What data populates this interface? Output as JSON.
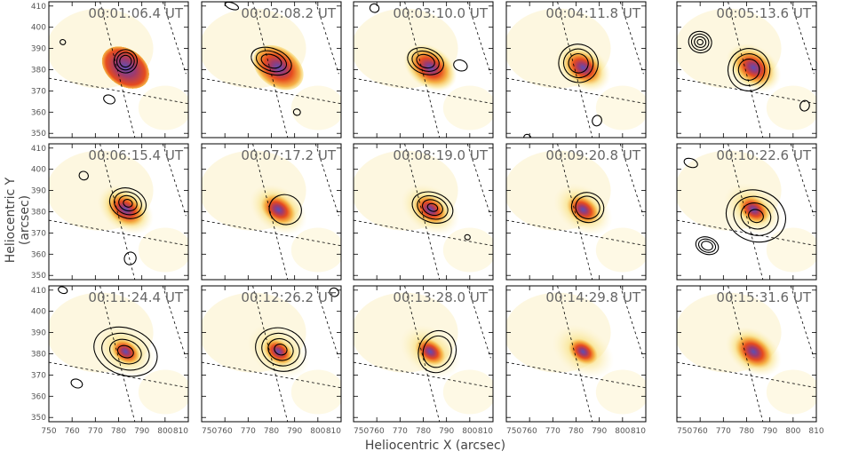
{
  "figure": {
    "xlabel": "Heliocentric X (arcsec)",
    "ylabel": "Heliocentric Y (arcsec)"
  },
  "chart_data": {
    "type": "heatmap",
    "grid": {
      "rows": 3,
      "cols": 5
    },
    "xlim": [
      750,
      810
    ],
    "ylim": [
      348,
      412
    ],
    "x_ticks": [
      750,
      760,
      770,
      780,
      790,
      800,
      810
    ],
    "y_ticks": [
      350,
      360,
      370,
      380,
      390,
      400,
      410
    ],
    "colors": {
      "frame": "#000000",
      "contour": "#000000",
      "tick_label": "#555555",
      "time_label": "#666666"
    },
    "panels": [
      {
        "time": "00:01:06.4 UT",
        "intensity": 0.25,
        "contours": [
          {
            "cx": 783,
            "cy": 384,
            "rx": 5,
            "ry": 5.5,
            "levels": 3
          },
          {
            "cx": 756,
            "cy": 393,
            "rx": 1.2,
            "ry": 1.2,
            "levels": 1
          },
          {
            "cx": 776,
            "cy": 366,
            "rx": 2.5,
            "ry": 2,
            "levels": 1
          }
        ]
      },
      {
        "time": "00:02:08.2 UT",
        "intensity": 0.55,
        "contours": [
          {
            "cx": 780,
            "cy": 384,
            "rx": 9,
            "ry": 6,
            "levels": 3
          },
          {
            "cx": 763,
            "cy": 410,
            "rx": 3,
            "ry": 1.5,
            "levels": 1
          },
          {
            "cx": 791,
            "cy": 360,
            "rx": 1.5,
            "ry": 1.5,
            "levels": 1
          }
        ]
      },
      {
        "time": "00:03:10.0 UT",
        "intensity": 0.85,
        "contours": [
          {
            "cx": 781,
            "cy": 384,
            "rx": 8,
            "ry": 6,
            "levels": 3
          },
          {
            "cx": 796,
            "cy": 382,
            "rx": 3,
            "ry": 2.5,
            "levels": 1
          },
          {
            "cx": 759,
            "cy": 409,
            "rx": 2,
            "ry": 2,
            "levels": 1
          }
        ]
      },
      {
        "time": "00:04:11.8 UT",
        "intensity": 1.05,
        "contours": [
          {
            "cx": 781,
            "cy": 383,
            "rx": 8.5,
            "ry": 9,
            "levels": 3
          },
          {
            "cx": 789,
            "cy": 356,
            "rx": 2,
            "ry": 2.5,
            "levels": 1
          },
          {
            "cx": 759,
            "cy": 348,
            "rx": 1.5,
            "ry": 1.5,
            "levels": 1
          }
        ]
      },
      {
        "time": "00:05:13.6 UT",
        "intensity": 1.0,
        "contours": [
          {
            "cx": 760,
            "cy": 393,
            "rx": 5,
            "ry": 5,
            "levels": 4
          },
          {
            "cx": 781,
            "cy": 380,
            "rx": 9,
            "ry": 10,
            "levels": 3
          },
          {
            "cx": 805,
            "cy": 363,
            "rx": 2,
            "ry": 2.5,
            "levels": 1
          }
        ]
      },
      {
        "time": "00:06:15.4 UT",
        "intensity": 1.1,
        "contours": [
          {
            "cx": 784,
            "cy": 384,
            "rx": 8,
            "ry": 7,
            "levels": 4
          },
          {
            "cx": 785,
            "cy": 358,
            "rx": 2.5,
            "ry": 3,
            "levels": 1
          },
          {
            "cx": 765,
            "cy": 397,
            "rx": 2,
            "ry": 2,
            "levels": 1
          }
        ]
      },
      {
        "time": "00:07:17.2 UT",
        "intensity": 1.25,
        "contours": [
          {
            "cx": 786,
            "cy": 381,
            "rx": 7,
            "ry": 7,
            "levels": 1
          }
        ]
      },
      {
        "time": "00:08:19.0 UT",
        "intensity": 1.35,
        "contours": [
          {
            "cx": 784,
            "cy": 382,
            "rx": 9,
            "ry": 7,
            "levels": 4
          },
          {
            "cx": 799,
            "cy": 368,
            "rx": 1.2,
            "ry": 1.2,
            "levels": 1
          }
        ]
      },
      {
        "time": "00:09:20.8 UT",
        "intensity": 1.4,
        "contours": [
          {
            "cx": 785,
            "cy": 382,
            "rx": 7,
            "ry": 7,
            "levels": 2
          }
        ]
      },
      {
        "time": "00:10:22.6 UT",
        "intensity": 1.5,
        "contours": [
          {
            "cx": 784,
            "cy": 378,
            "rx": 13,
            "ry": 12,
            "levels": 4
          },
          {
            "cx": 763,
            "cy": 364,
            "rx": 5,
            "ry": 4,
            "levels": 3
          },
          {
            "cx": 756,
            "cy": 403,
            "rx": 3,
            "ry": 2,
            "levels": 1
          }
        ]
      },
      {
        "time": "00:11:24.4 UT",
        "intensity": 1.75,
        "contours": [
          {
            "cx": 783,
            "cy": 381,
            "rx": 14,
            "ry": 11,
            "levels": 4
          },
          {
            "cx": 762,
            "cy": 366,
            "rx": 2.5,
            "ry": 2,
            "levels": 1
          },
          {
            "cx": 756,
            "cy": 410,
            "rx": 2,
            "ry": 1.5,
            "levels": 1
          }
        ]
      },
      {
        "time": "00:12:26.2 UT",
        "intensity": 1.7,
        "contours": [
          {
            "cx": 784,
            "cy": 382,
            "rx": 11,
            "ry": 10,
            "levels": 4
          },
          {
            "cx": 807,
            "cy": 409,
            "rx": 2,
            "ry": 2,
            "levels": 1
          }
        ]
      },
      {
        "time": "00:13:28.0 UT",
        "intensity": 1.6,
        "contours": [
          {
            "cx": 786,
            "cy": 381,
            "rx": 8,
            "ry": 10,
            "levels": 2
          }
        ]
      },
      {
        "time": "00:14:29.8 UT",
        "intensity": 1.7,
        "contours": []
      },
      {
        "time": "00:15:31.6 UT",
        "intensity": 1.1,
        "contours": []
      }
    ]
  }
}
